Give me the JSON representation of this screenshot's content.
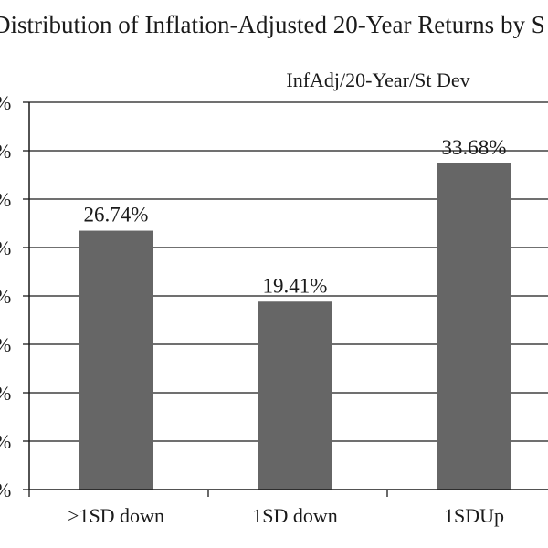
{
  "chart_data": {
    "type": "bar",
    "title": "Distribution of Inflation-Adjusted 20-Year Returns by S",
    "series_label": "InfAdj/20-Year/St Dev",
    "categories": [
      ">1SD down",
      "1SD down",
      "1SDUp"
    ],
    "values": [
      26.74,
      19.41,
      33.68
    ],
    "value_labels": [
      "26.74%",
      "19.41%",
      "33.68%"
    ],
    "ytick_labels": [
      "%",
      "%",
      "%",
      "%",
      "%",
      "%",
      "%",
      "%",
      "%"
    ],
    "ylim": [
      0,
      40
    ],
    "ytick_step": 5,
    "grid": true,
    "bar_color": "#666666",
    "grid_color": "#1a1a1a"
  }
}
